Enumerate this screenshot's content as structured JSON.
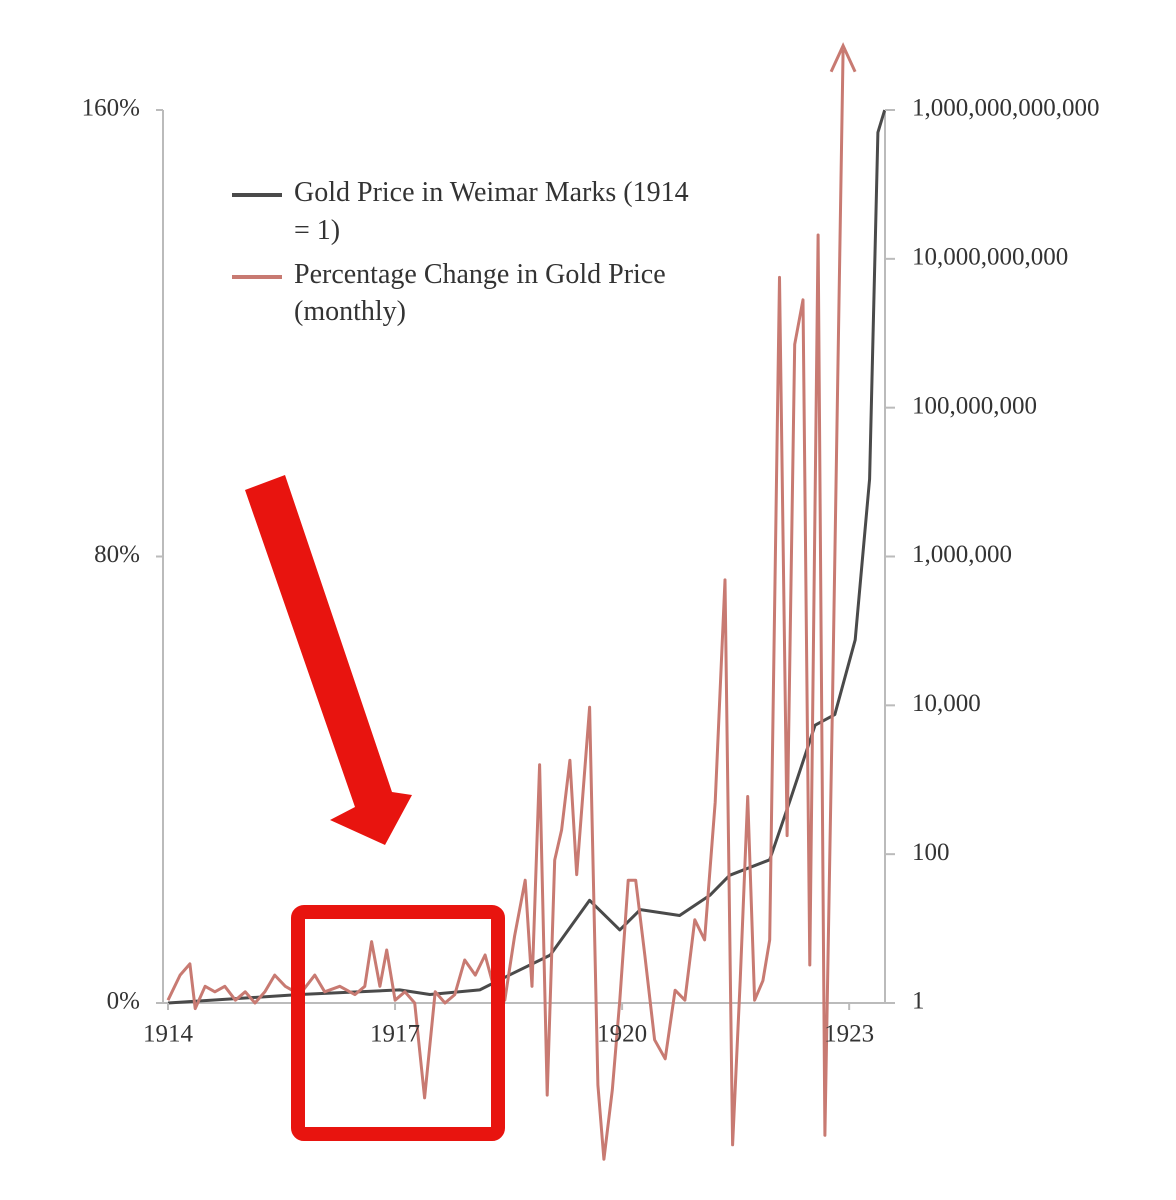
{
  "chart_data": {
    "type": "line",
    "xlim": [
      1914,
      1923.5
    ],
    "xticks": [
      1914,
      1917,
      1920,
      1923
    ],
    "ylim": [
      0,
      160
    ],
    "yticks": [
      {
        "value": 0,
        "label": "0%"
      },
      {
        "value": 80,
        "label": "80%"
      },
      {
        "value": 160,
        "label": "160%"
      }
    ],
    "y2lim": [
      1,
      1000000000000
    ],
    "y2scale": "log",
    "y2ticks": [
      1,
      100,
      {
        "value": 10000,
        "label": "10,000"
      },
      {
        "value": 1000000,
        "label": "1,000,000"
      },
      {
        "value": 100000000,
        "label": "100,000,000"
      },
      {
        "value": 10000000000,
        "label": "10,000,000,000"
      },
      {
        "value": 1000000000000,
        "label": "1,000,000,000,000"
      }
    ],
    "series": [
      {
        "name": "Gold Price in Weimar Marks (1914 = 1)",
        "color": "#4a4a4a",
        "axis": "y2",
        "x": [
          1914.0,
          1915.74,
          1917.06,
          1917.46,
          1918.12,
          1918.52,
          1919.05,
          1919.57,
          1919.97,
          1920.24,
          1920.76,
          1921.16,
          1921.42,
          1921.95,
          1922.22,
          1922.55,
          1922.81,
          1923.08,
          1923.27,
          1923.38,
          1923.47
        ],
        "values": [
          1,
          1.3,
          1.5,
          1.3,
          1.5,
          2.4,
          4.4,
          24,
          9.6,
          18,
          15,
          28,
          52,
          84,
          530,
          5400,
          7500,
          76000,
          11000000,
          500000000000,
          1000000000000
        ]
      },
      {
        "name": "Percentage Change in Gold Price (monthly)",
        "color": "#c87a72",
        "x": [
          1914.0,
          1914.16,
          1914.29,
          1914.36,
          1914.49,
          1914.62,
          1914.75,
          1914.89,
          1915.02,
          1915.15,
          1915.28,
          1915.41,
          1915.55,
          1915.74,
          1915.94,
          1916.07,
          1916.27,
          1916.47,
          1916.6,
          1916.69,
          1916.8,
          1916.89,
          1917.0,
          1917.13,
          1917.26,
          1917.39,
          1917.53,
          1917.66,
          1917.79,
          1917.92,
          1918.06,
          1918.19,
          1918.32,
          1918.45,
          1918.58,
          1918.72,
          1918.81,
          1918.91,
          1919.01,
          1919.11,
          1919.2,
          1919.31,
          1919.4,
          1919.48,
          1919.57,
          1919.68,
          1919.76,
          1919.87,
          1919.97,
          1920.08,
          1920.18,
          1920.3,
          1920.43,
          1920.57,
          1920.7,
          1920.83,
          1920.96,
          1921.09,
          1921.23,
          1921.36,
          1921.46,
          1921.56,
          1921.66,
          1921.75,
          1921.86,
          1921.95,
          1922.08,
          1922.18,
          1922.28,
          1922.39,
          1922.48,
          1922.59,
          1922.68,
          1922.78,
          1922.92
        ],
        "values": [
          0.5,
          5,
          7,
          -1,
          3,
          2,
          3,
          0.5,
          2,
          0,
          2,
          5,
          3,
          1.5,
          5,
          2,
          3,
          1.5,
          3,
          11,
          3,
          9.5,
          0.5,
          2,
          0,
          -17,
          2,
          0,
          1.5,
          7.7,
          5,
          8.6,
          2,
          0.5,
          12,
          22,
          3,
          42.7,
          -16.5,
          25.6,
          31,
          43.5,
          23,
          37,
          53,
          -14.7,
          -28,
          -15.6,
          0.5,
          22,
          22,
          8.6,
          -6.6,
          -10,
          2.3,
          0.5,
          14.9,
          11.3,
          36,
          75.8,
          -25.4,
          4,
          37,
          0.5,
          4,
          11.3,
          130,
          30,
          118,
          126,
          6.8,
          137.6,
          -23.7,
          54,
          170.8
        ]
      }
    ]
  }
}
